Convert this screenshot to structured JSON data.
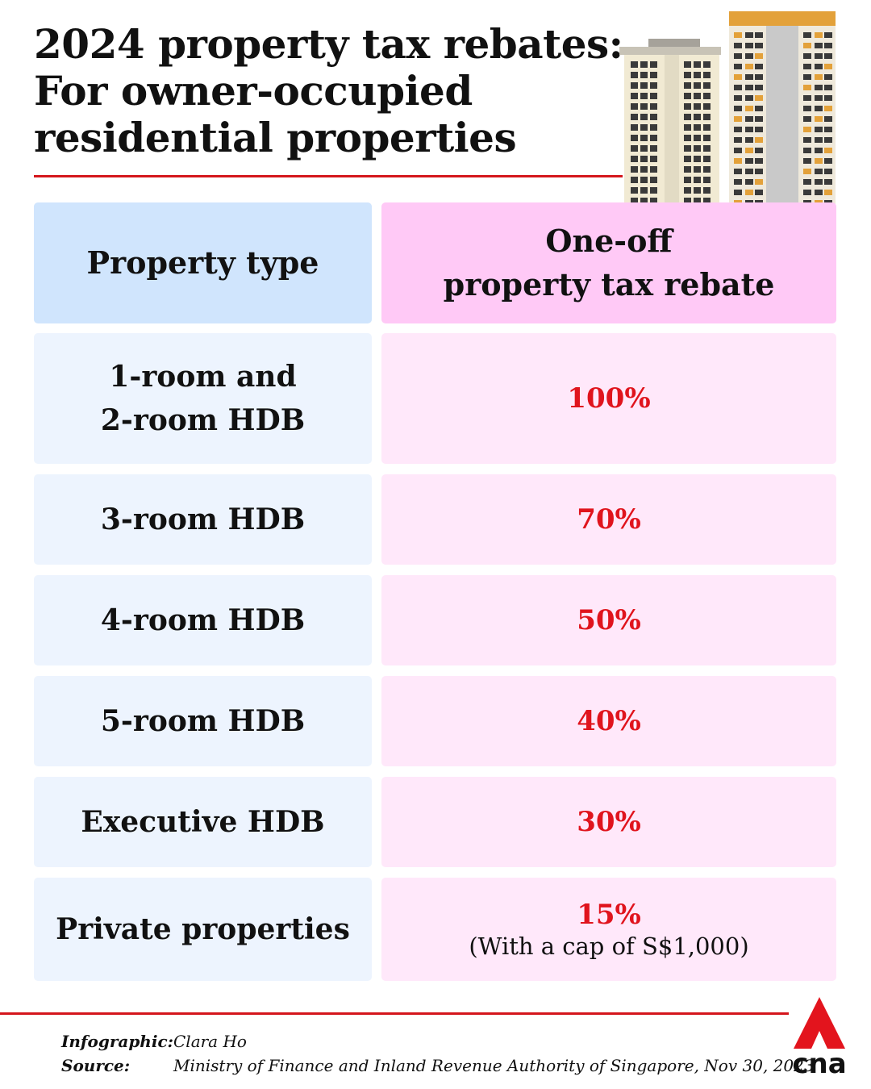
{
  "title": {
    "lines": [
      "2024 property tax rebates:",
      "For owner-occupied",
      "residential properties"
    ]
  },
  "table": {
    "headers": {
      "property_type": "Property type",
      "rebate_lines": [
        "One-off",
        "property tax rebate"
      ]
    },
    "rows": [
      {
        "type_lines": [
          "1-room and",
          "2-room HDB"
        ],
        "rebate": "100%"
      },
      {
        "type_lines": [
          "3-room HDB"
        ],
        "rebate": "70%"
      },
      {
        "type_lines": [
          "4-room HDB"
        ],
        "rebate": "50%"
      },
      {
        "type_lines": [
          "5-room HDB"
        ],
        "rebate": "40%"
      },
      {
        "type_lines": [
          "Executive HDB"
        ],
        "rebate": "30%"
      },
      {
        "type_lines": [
          "Private properties"
        ],
        "rebate": "15%",
        "note": "(With a cap of S$1,000)"
      }
    ]
  },
  "footer": {
    "infographic_label": "Infographic:",
    "infographic_value": "Clara Ho",
    "source_label": "Source:",
    "source_value": "Ministry of Finance and Inland Revenue Authority of Singapore, Nov 30, 2023"
  },
  "logo": {
    "text": "cna",
    "icon": "cna-logo-icon"
  },
  "colors": {
    "accent_red": "#d4161c",
    "rebate_red": "#e0141d",
    "header_blue": "#d0e5fd",
    "header_pink": "#ffc9f6",
    "row_blue": "#edf4fe",
    "row_pink": "#ffe8fa"
  }
}
